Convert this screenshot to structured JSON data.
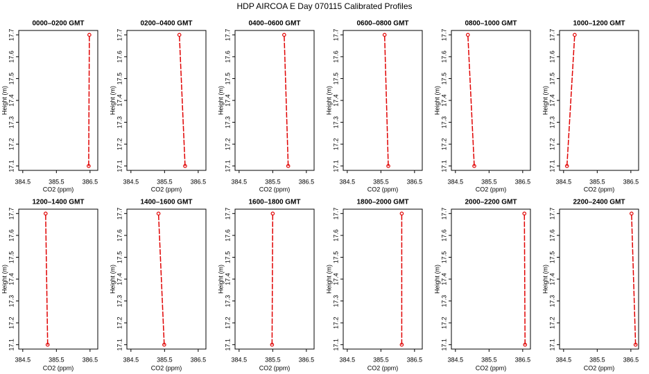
{
  "title": "HDP AIRCOA E  Day 070115  Calibrated Profiles",
  "chart_data": [
    {
      "type": "line",
      "title": "0000–0200 GMT",
      "xlabel": "CO2 (ppm)",
      "ylabel": "Height (m)",
      "color": "#e00000",
      "x": [
        386.46,
        386.48
      ],
      "values": [
        17.1,
        17.7
      ],
      "xlim": [
        384.38,
        386.73
      ],
      "xticks": [
        384.5,
        385.5,
        386.5
      ],
      "ylim": [
        17.08,
        17.72
      ],
      "yticks": [
        17.1,
        17.2,
        17.3,
        17.4,
        17.5,
        17.6,
        17.7
      ]
    },
    {
      "type": "line",
      "title": "0200–0400 GMT",
      "xlabel": "CO2 (ppm)",
      "ylabel": "Height (m)",
      "color": "#e00000",
      "x": [
        386.11,
        385.94
      ],
      "values": [
        17.1,
        17.7
      ],
      "xlim": [
        384.38,
        386.73
      ],
      "xticks": [
        384.5,
        385.5,
        386.5
      ],
      "ylim": [
        17.08,
        17.72
      ],
      "yticks": [
        17.1,
        17.2,
        17.3,
        17.4,
        17.5,
        17.6,
        17.7
      ]
    },
    {
      "type": "line",
      "title": "0400–0600 GMT",
      "xlabel": "CO2 (ppm)",
      "ylabel": "Height (m)",
      "color": "#e00000",
      "x": [
        385.96,
        385.84
      ],
      "values": [
        17.1,
        17.7
      ],
      "xlim": [
        384.38,
        386.73
      ],
      "xticks": [
        384.5,
        385.5,
        386.5
      ],
      "ylim": [
        17.08,
        17.72
      ],
      "yticks": [
        17.1,
        17.2,
        17.3,
        17.4,
        17.5,
        17.6,
        17.7
      ]
    },
    {
      "type": "line",
      "title": "0600–0800 GMT",
      "xlabel": "CO2 (ppm)",
      "ylabel": "Height (m)",
      "color": "#e00000",
      "x": [
        385.72,
        385.61
      ],
      "values": [
        17.1,
        17.7
      ],
      "xlim": [
        384.38,
        386.73
      ],
      "xticks": [
        384.5,
        385.5,
        386.5
      ],
      "ylim": [
        17.08,
        17.72
      ],
      "yticks": [
        17.1,
        17.2,
        17.3,
        17.4,
        17.5,
        17.6,
        17.7
      ]
    },
    {
      "type": "line",
      "title": "0800–1000 GMT",
      "xlabel": "CO2 (ppm)",
      "ylabel": "Height (m)",
      "color": "#e00000",
      "x": [
        385.06,
        384.87
      ],
      "values": [
        17.1,
        17.7
      ],
      "xlim": [
        384.38,
        386.73
      ],
      "xticks": [
        384.5,
        385.5,
        386.5
      ],
      "ylim": [
        17.08,
        17.72
      ],
      "yticks": [
        17.1,
        17.2,
        17.3,
        17.4,
        17.5,
        17.6,
        17.7
      ]
    },
    {
      "type": "line",
      "title": "1000–1200 GMT",
      "xlabel": "CO2 (ppm)",
      "ylabel": "Height (m)",
      "color": "#e00000",
      "x": [
        384.6,
        384.83
      ],
      "values": [
        17.1,
        17.7
      ],
      "xlim": [
        384.38,
        386.73
      ],
      "xticks": [
        384.5,
        385.5,
        386.5
      ],
      "ylim": [
        17.08,
        17.72
      ],
      "yticks": [
        17.1,
        17.2,
        17.3,
        17.4,
        17.5,
        17.6,
        17.7
      ]
    },
    {
      "type": "line",
      "title": "1200–1400 GMT",
      "xlabel": "CO2 (ppm)",
      "ylabel": "Height (m)",
      "color": "#e00000",
      "x": [
        385.24,
        385.18
      ],
      "values": [
        17.1,
        17.7
      ],
      "xlim": [
        384.38,
        386.73
      ],
      "xticks": [
        384.5,
        385.5,
        386.5
      ],
      "ylim": [
        17.08,
        17.72
      ],
      "yticks": [
        17.1,
        17.2,
        17.3,
        17.4,
        17.5,
        17.6,
        17.7
      ]
    },
    {
      "type": "line",
      "title": "1400–1600 GMT",
      "xlabel": "CO2 (ppm)",
      "ylabel": "Height (m)",
      "color": "#e00000",
      "x": [
        385.49,
        385.32
      ],
      "values": [
        17.1,
        17.7
      ],
      "xlim": [
        384.38,
        386.73
      ],
      "xticks": [
        384.5,
        385.5,
        386.5
      ],
      "ylim": [
        17.08,
        17.72
      ],
      "yticks": [
        17.1,
        17.2,
        17.3,
        17.4,
        17.5,
        17.6,
        17.7
      ]
    },
    {
      "type": "line",
      "title": "1600–1800 GMT",
      "xlabel": "CO2 (ppm)",
      "ylabel": "Height (m)",
      "color": "#e00000",
      "x": [
        385.48,
        385.5
      ],
      "values": [
        17.1,
        17.7
      ],
      "xlim": [
        384.38,
        386.73
      ],
      "xticks": [
        384.5,
        385.5,
        386.5
      ],
      "ylim": [
        17.08,
        17.72
      ],
      "yticks": [
        17.1,
        17.2,
        17.3,
        17.4,
        17.5,
        17.6,
        17.7
      ]
    },
    {
      "type": "line",
      "title": "1800–2000 GMT",
      "xlabel": "CO2 (ppm)",
      "ylabel": "Height (m)",
      "color": "#e00000",
      "x": [
        386.12,
        386.12
      ],
      "values": [
        17.1,
        17.7
      ],
      "xlim": [
        384.38,
        386.73
      ],
      "xticks": [
        384.5,
        385.5,
        386.5
      ],
      "ylim": [
        17.08,
        17.72
      ],
      "yticks": [
        17.1,
        17.2,
        17.3,
        17.4,
        17.5,
        17.6,
        17.7
      ]
    },
    {
      "type": "line",
      "title": "2000–2200 GMT",
      "xlabel": "CO2 (ppm)",
      "ylabel": "Height (m)",
      "color": "#e00000",
      "x": [
        386.57,
        386.55
      ],
      "values": [
        17.1,
        17.7
      ],
      "xlim": [
        384.38,
        386.73
      ],
      "xticks": [
        384.5,
        385.5,
        386.5
      ],
      "ylim": [
        17.08,
        17.72
      ],
      "yticks": [
        17.1,
        17.2,
        17.3,
        17.4,
        17.5,
        17.6,
        17.7
      ]
    },
    {
      "type": "line",
      "title": "2200–2400 GMT",
      "xlabel": "CO2 (ppm)",
      "ylabel": "Height (m)",
      "color": "#e00000",
      "x": [
        386.64,
        386.52
      ],
      "values": [
        17.1,
        17.7
      ],
      "xlim": [
        384.38,
        386.73
      ],
      "xticks": [
        384.5,
        385.5,
        386.5
      ],
      "ylim": [
        17.08,
        17.72
      ],
      "yticks": [
        17.1,
        17.2,
        17.3,
        17.4,
        17.5,
        17.6,
        17.7
      ]
    }
  ]
}
